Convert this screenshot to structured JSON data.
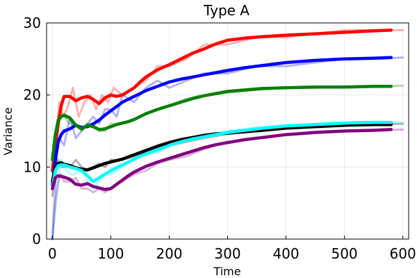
{
  "chart_data": {
    "type": "line",
    "title": "Type A",
    "xlabel": "Time",
    "ylabel": "Variance",
    "xlim": [
      -10,
      610
    ],
    "ylim": [
      0,
      30
    ],
    "xticks": [
      0,
      100,
      200,
      300,
      400,
      500,
      600
    ],
    "yticks": [
      0,
      10,
      20,
      30
    ],
    "grid": true,
    "legend": "none",
    "series": [
      {
        "color": "#ff0000",
        "raw_x": [
          0,
          4,
          8,
          12,
          18,
          25,
          35,
          45,
          55,
          65,
          75,
          85,
          95,
          105,
          120,
          140,
          160,
          180,
          200,
          230,
          260,
          300,
          350,
          400,
          450,
          500,
          550,
          600
        ],
        "raw_y": [
          7,
          12,
          16,
          19,
          17,
          18,
          21,
          17,
          19,
          20,
          18,
          20,
          19,
          21,
          20,
          21,
          22,
          24,
          24,
          25,
          27,
          27,
          28,
          28,
          28.5,
          29,
          29,
          29
        ],
        "smooth_x": [
          0,
          5,
          10,
          15,
          20,
          30,
          40,
          50,
          60,
          70,
          80,
          90,
          100,
          110,
          120,
          130,
          140,
          150,
          160,
          180,
          200,
          220,
          240,
          260,
          280,
          300,
          330,
          360,
          400,
          450,
          500,
          550,
          580
        ],
        "smooth_y": [
          9.5,
          13,
          16,
          18.5,
          19.8,
          19.8,
          19.2,
          19.6,
          19.8,
          19.4,
          18.8,
          19.6,
          20,
          19.8,
          20,
          20.5,
          21,
          21.8,
          22.5,
          23.5,
          24.2,
          25,
          25.8,
          26.4,
          27.1,
          27.6,
          27.9,
          28.1,
          28.3,
          28.5,
          28.7,
          28.9,
          29
        ]
      },
      {
        "color": "#0000ff",
        "raw_x": [
          0,
          4,
          8,
          12,
          20,
          30,
          40,
          50,
          60,
          70,
          80,
          90,
          100,
          110,
          120,
          140,
          160,
          180,
          200,
          230,
          260,
          300,
          350,
          400,
          450,
          500,
          550,
          600
        ],
        "raw_y": [
          0,
          6,
          12,
          14,
          13,
          17,
          14,
          15,
          16,
          17,
          16,
          18,
          18,
          17,
          20,
          19,
          21,
          22,
          21,
          22,
          23,
          23,
          24,
          24,
          24.5,
          25,
          25,
          25.2
        ],
        "smooth_x": [
          0,
          5,
          10,
          15,
          20,
          30,
          40,
          50,
          60,
          70,
          80,
          90,
          100,
          110,
          120,
          130,
          140,
          150,
          160,
          180,
          200,
          220,
          240,
          260,
          280,
          300,
          330,
          360,
          400,
          450,
          500,
          550,
          580
        ],
        "smooth_y": [
          7.5,
          11,
          13.5,
          14.5,
          15,
          15.3,
          15.8,
          15.5,
          15.6,
          16,
          16.5,
          17.2,
          17.8,
          18.4,
          19,
          19.4,
          19.8,
          20.2,
          20.6,
          21.2,
          21.8,
          22.2,
          22.5,
          22.8,
          23.1,
          23.4,
          23.8,
          24.1,
          24.5,
          24.8,
          25,
          25.1,
          25.2
        ]
      },
      {
        "color": "#008000",
        "raw_x": [
          0,
          5,
          10,
          15,
          20,
          30,
          40,
          50,
          60,
          70,
          80,
          90,
          100,
          120,
          140,
          160,
          180,
          200,
          230,
          260,
          300,
          350,
          400,
          450,
          500,
          550,
          600
        ],
        "raw_y": [
          10,
          14,
          16,
          17,
          17,
          16,
          16,
          15,
          16,
          16,
          15,
          15,
          16,
          16,
          16.5,
          17.5,
          18,
          18.5,
          19.5,
          20,
          20.3,
          20.7,
          21,
          21,
          21.2,
          21.2,
          21.3
        ],
        "smooth_x": [
          0,
          5,
          10,
          15,
          20,
          30,
          40,
          50,
          60,
          70,
          80,
          90,
          100,
          110,
          120,
          130,
          140,
          150,
          160,
          180,
          200,
          220,
          240,
          260,
          280,
          300,
          330,
          360,
          400,
          450,
          500,
          550,
          580
        ],
        "smooth_y": [
          11,
          14.5,
          16.5,
          17,
          17.2,
          16.8,
          15.8,
          15.3,
          15.8,
          15.6,
          15.2,
          15.3,
          15.6,
          15.9,
          16.1,
          16.3,
          16.6,
          17,
          17.4,
          18,
          18.5,
          19,
          19.5,
          19.9,
          20.2,
          20.5,
          20.7,
          20.9,
          21,
          21.1,
          21.1,
          21.2,
          21.2
        ]
      },
      {
        "color": "#000000",
        "raw_x": [
          0,
          5,
          10,
          15,
          20,
          30,
          40,
          50,
          60,
          70,
          80,
          90,
          100,
          120,
          140,
          160,
          180,
          200,
          230,
          260,
          300,
          350,
          400,
          450,
          500,
          550,
          600
        ],
        "raw_y": [
          6,
          10,
          11,
          10,
          10,
          10,
          11,
          10,
          9.5,
          10,
          10.5,
          10,
          11,
          11,
          11.5,
          12,
          12.5,
          13,
          13.5,
          14,
          14.6,
          15,
          15.4,
          15.6,
          15.8,
          15.9,
          16
        ],
        "smooth_x": [
          0,
          5,
          10,
          15,
          20,
          30,
          40,
          50,
          60,
          70,
          80,
          90,
          100,
          110,
          120,
          130,
          140,
          150,
          160,
          180,
          200,
          220,
          240,
          260,
          280,
          300,
          330,
          360,
          400,
          450,
          500,
          550,
          580
        ],
        "smooth_y": [
          8,
          10,
          10.5,
          10.6,
          10.4,
          10.2,
          9.9,
          9.7,
          9.6,
          9.9,
          10.2,
          10.5,
          10.7,
          10.9,
          11.1,
          11.4,
          11.7,
          12,
          12.3,
          12.9,
          13.4,
          13.8,
          14.1,
          14.4,
          14.6,
          14.7,
          14.9,
          15.1,
          15.4,
          15.6,
          15.8,
          15.9,
          15.9
        ]
      },
      {
        "color": "#00ffff",
        "raw_x": [
          0,
          5,
          10,
          15,
          20,
          30,
          40,
          50,
          60,
          70,
          80,
          90,
          100,
          120,
          140,
          160,
          180,
          200,
          230,
          260,
          300,
          350,
          400,
          450,
          500,
          550,
          600
        ],
        "raw_y": [
          0,
          4,
          8,
          11,
          10,
          9,
          9,
          10,
          8,
          7,
          8,
          9,
          9,
          10,
          11,
          12,
          12,
          13,
          14,
          14.5,
          15,
          15.5,
          15.8,
          16,
          16.2,
          16.3,
          16.2
        ],
        "smooth_x": [
          0,
          5,
          10,
          15,
          20,
          30,
          40,
          50,
          60,
          70,
          80,
          90,
          100,
          110,
          120,
          130,
          140,
          150,
          160,
          180,
          200,
          220,
          240,
          260,
          280,
          300,
          330,
          360,
          400,
          450,
          500,
          550,
          580
        ],
        "smooth_y": [
          7,
          9.5,
          10.2,
          10.3,
          10.3,
          10,
          9.8,
          9.5,
          8.8,
          8,
          8.5,
          9,
          9.5,
          9.9,
          10.3,
          10.7,
          11.1,
          11.5,
          11.8,
          12.4,
          13,
          13.5,
          13.9,
          14.2,
          14.5,
          14.8,
          15.1,
          15.4,
          15.7,
          15.9,
          16.1,
          16.2,
          16.2
        ]
      },
      {
        "color": "#800080",
        "raw_x": [
          0,
          5,
          10,
          15,
          20,
          30,
          40,
          50,
          60,
          70,
          80,
          90,
          100,
          120,
          140,
          160,
          180,
          200,
          230,
          260,
          300,
          350,
          400,
          450,
          500,
          550,
          600
        ],
        "raw_y": [
          0,
          5,
          8,
          9,
          8,
          8,
          8.5,
          7,
          7,
          6.5,
          7,
          6.5,
          7,
          8,
          9,
          9.5,
          10.5,
          11,
          11.5,
          12.5,
          13.5,
          14,
          14.5,
          14.9,
          15,
          15.1,
          15.2
        ],
        "smooth_x": [
          0,
          5,
          10,
          15,
          20,
          30,
          40,
          50,
          60,
          70,
          80,
          90,
          100,
          110,
          120,
          130,
          140,
          150,
          160,
          180,
          200,
          220,
          240,
          260,
          280,
          300,
          330,
          360,
          400,
          450,
          500,
          550,
          580
        ],
        "smooth_y": [
          7,
          8.5,
          8.8,
          8.7,
          8.6,
          8.3,
          7.6,
          7.5,
          7.7,
          7.3,
          7.1,
          6.9,
          7,
          7.6,
          8.2,
          8.8,
          9.3,
          9.7,
          10.1,
          10.7,
          11.2,
          11.7,
          12.2,
          12.7,
          13.1,
          13.4,
          13.8,
          14.1,
          14.5,
          14.8,
          15,
          15.1,
          15.2
        ]
      }
    ]
  }
}
